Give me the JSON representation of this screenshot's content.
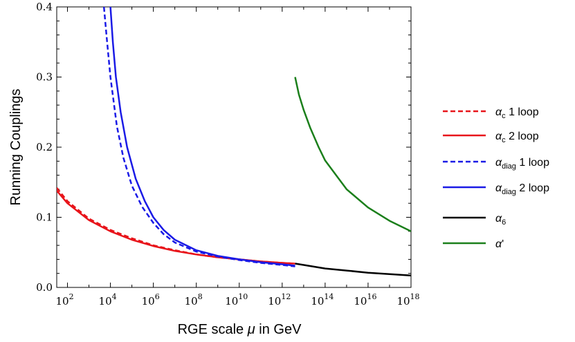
{
  "chart_data": {
    "type": "line",
    "title": "",
    "xlabel_parts": [
      "RGE scale ",
      "μ",
      " in GeV"
    ],
    "ylabel": "Running Couplings",
    "x_scale": "log10",
    "xlim": [
      31.6,
      1e+18
    ],
    "ylim": [
      0,
      0.4
    ],
    "grid": false,
    "legend_position": "right",
    "x_ticks": [
      {
        "value": 100,
        "base": "10",
        "exp": "2"
      },
      {
        "value": 10000,
        "base": "10",
        "exp": "4"
      },
      {
        "value": 1000000,
        "base": "10",
        "exp": "6"
      },
      {
        "value": 100000000,
        "base": "10",
        "exp": "8"
      },
      {
        "value": 10000000000,
        "base": "10",
        "exp": "10"
      },
      {
        "value": 1000000000000,
        "base": "10",
        "exp": "12"
      },
      {
        "value": 100000000000000,
        "base": "10",
        "exp": "14"
      },
      {
        "value": 10000000000000000,
        "base": "10",
        "exp": "16"
      },
      {
        "value": 1000000000000000000,
        "base": "10",
        "exp": "18"
      }
    ],
    "y_ticks": [
      {
        "value": 0.0,
        "label": "0.0"
      },
      {
        "value": 0.1,
        "label": "0.1"
      },
      {
        "value": 0.2,
        "label": "0.2"
      },
      {
        "value": 0.3,
        "label": "0.3"
      },
      {
        "value": 0.4,
        "label": "0.4"
      }
    ],
    "series": [
      {
        "id": "alpha-c-1loop",
        "legend_main": "α",
        "legend_sub": "c",
        "legend_rest": " 1 loop",
        "color": "#e8141a",
        "dashed": true,
        "points": [
          [
            31.6,
            0.142
          ],
          [
            100,
            0.123
          ],
          [
            1000,
            0.098
          ],
          [
            10000,
            0.082
          ],
          [
            100000,
            0.07
          ],
          [
            1000000,
            0.06
          ],
          [
            10000000,
            0.053
          ],
          [
            100000000,
            0.047
          ],
          [
            1000000000,
            0.043
          ],
          [
            10000000000,
            0.04
          ],
          [
            100000000000,
            0.037
          ],
          [
            1000000000000,
            0.035
          ],
          [
            4000000000000,
            0.034
          ]
        ]
      },
      {
        "id": "alpha-c-2loop",
        "legend_main": "α",
        "legend_sub": "c",
        "legend_rest": " 2 loop",
        "color": "#e8141a",
        "dashed": false,
        "points": [
          [
            31.6,
            0.138
          ],
          [
            100,
            0.12
          ],
          [
            1000,
            0.096
          ],
          [
            10000,
            0.08
          ],
          [
            100000,
            0.068
          ],
          [
            1000000,
            0.059
          ],
          [
            10000000,
            0.052
          ],
          [
            100000000,
            0.047
          ],
          [
            1000000000,
            0.043
          ],
          [
            10000000000,
            0.04
          ],
          [
            100000000000,
            0.037
          ],
          [
            1000000000000,
            0.035
          ],
          [
            4000000000000,
            0.034
          ]
        ]
      },
      {
        "id": "alpha-diag-1loop",
        "legend_main": "α",
        "legend_sub": "diag",
        "legend_rest": " 1 loop",
        "color": "#1a1ae6",
        "dashed": true,
        "points": [
          [
            5000,
            0.4
          ],
          [
            7000,
            0.35
          ],
          [
            10000,
            0.3
          ],
          [
            20000,
            0.23
          ],
          [
            40000,
            0.185
          ],
          [
            100000,
            0.145
          ],
          [
            300000,
            0.115
          ],
          [
            1000000,
            0.092
          ],
          [
            3000000,
            0.076
          ],
          [
            10000000,
            0.064
          ],
          [
            100000000,
            0.051
          ],
          [
            1000000000,
            0.044
          ],
          [
            10000000000,
            0.039
          ],
          [
            100000000000,
            0.035
          ],
          [
            1000000000000,
            0.032
          ],
          [
            4000000000000,
            0.03
          ]
        ]
      },
      {
        "id": "alpha-diag-2loop",
        "legend_main": "α",
        "legend_sub": "diag",
        "legend_rest": " 2 loop",
        "color": "#1a1ae6",
        "dashed": false,
        "points": [
          [
            10000,
            0.4
          ],
          [
            13000,
            0.35
          ],
          [
            18000,
            0.3
          ],
          [
            30000,
            0.25
          ],
          [
            60000,
            0.2
          ],
          [
            150000,
            0.155
          ],
          [
            400000,
            0.123
          ],
          [
            1000000,
            0.1
          ],
          [
            3000000,
            0.082
          ],
          [
            10000000,
            0.068
          ],
          [
            100000000,
            0.053
          ],
          [
            1000000000,
            0.045
          ],
          [
            10000000000,
            0.04
          ],
          [
            100000000000,
            0.036
          ],
          [
            1000000000000,
            0.033
          ],
          [
            4000000000000,
            0.031
          ]
        ]
      },
      {
        "id": "alpha-6",
        "legend_main": "α",
        "legend_sub": "6",
        "legend_rest": "",
        "color": "#000000",
        "dashed": false,
        "points": [
          [
            4000000000000,
            0.034
          ],
          [
            10000000000000,
            0.032
          ],
          [
            100000000000000,
            0.027
          ],
          [
            1000000000000000,
            0.024
          ],
          [
            10000000000000000,
            0.021
          ],
          [
            100000000000000000,
            0.019
          ],
          [
            1000000000000000000,
            0.017
          ]
        ]
      },
      {
        "id": "alpha-prime",
        "legend_main": "α",
        "legend_sub": "",
        "legend_rest": "'",
        "color": "#1b7f1b",
        "dashed": false,
        "points": [
          [
            4000000000000,
            0.3
          ],
          [
            6000000000000,
            0.275
          ],
          [
            10000000000000,
            0.253
          ],
          [
            20000000000000,
            0.228
          ],
          [
            50000000000000,
            0.2
          ],
          [
            100000000000000,
            0.181
          ],
          [
            1000000000000000,
            0.14
          ],
          [
            10000000000000000,
            0.114
          ],
          [
            100000000000000000,
            0.095
          ],
          [
            1000000000000000000,
            0.08
          ]
        ]
      }
    ]
  }
}
